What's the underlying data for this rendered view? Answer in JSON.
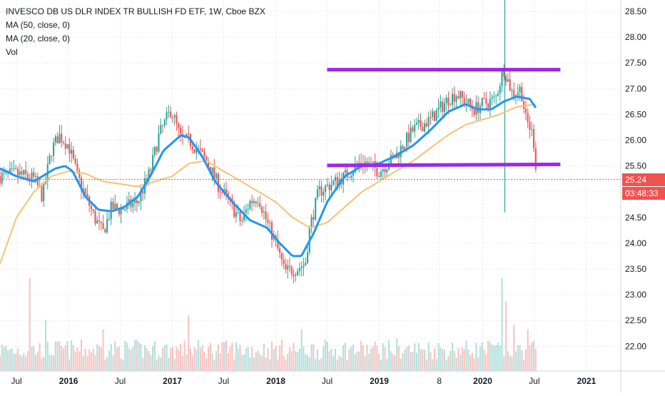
{
  "header": {
    "title": "INVESCO DB US DLR INDEX TR BULLISH FD ETF, 1W, Cboe BZX",
    "indicators": [
      "MA (50, close, 0)",
      "MA (20, close, 0)",
      "Vol"
    ]
  },
  "price_scale": {
    "labels": [
      "28.50",
      "28.00",
      "27.50",
      "27.00",
      "26.50",
      "26.00",
      "25.50",
      "25.00",
      "24.50",
      "24.00",
      "23.50",
      "23.00",
      "22.50",
      "22.00"
    ],
    "last_price": "25.24",
    "countdown": "03:48:33"
  },
  "time_scale": {
    "labels": [
      "Jul",
      "2016",
      "Jul",
      "2017",
      "Jul",
      "2018",
      "Jul",
      "2019",
      "8",
      "2020",
      "Jul",
      "2021"
    ]
  },
  "colors": {
    "up": "#26a69a",
    "down": "#ef5350",
    "ma20": "#2196f3",
    "ma50": "#f5c371",
    "lines": "#9c27ef",
    "last_price": "#ef5350",
    "grid": "#e3e6ec"
  },
  "chart_data": {
    "type": "candlestick",
    "title": "INVESCO DB US DLR INDEX TR BULLISH FD ETF, 1W, Cboe BZX",
    "interval": "1W",
    "x_range": [
      "2015-05",
      "2021-04"
    ],
    "y_range": [
      21.6,
      28.75
    ],
    "grid": true,
    "price_anchors": [
      [
        "2015-05-04",
        25.3
      ],
      [
        "2015-07-01",
        25.35
      ],
      [
        "2015-09-01",
        25.25
      ],
      [
        "2015-10-01",
        24.9
      ],
      [
        "2015-11-01",
        25.8
      ],
      [
        "2015-11-28",
        26.1
      ],
      [
        "2016-01-01",
        25.9
      ],
      [
        "2016-02-01",
        25.3
      ],
      [
        "2016-04-01",
        24.5
      ],
      [
        "2016-05-01",
        24.2
      ],
      [
        "2016-06-01",
        24.7
      ],
      [
        "2016-07-01",
        24.65
      ],
      [
        "2016-09-01",
        24.8
      ],
      [
        "2016-10-15",
        25.4
      ],
      [
        "2016-11-15",
        26.1
      ],
      [
        "2016-12-28",
        26.6
      ],
      [
        "2017-02-01",
        26.0
      ],
      [
        "2017-03-01",
        26.0
      ],
      [
        "2017-04-01",
        25.8
      ],
      [
        "2017-05-01",
        25.6
      ],
      [
        "2017-06-15",
        25.1
      ],
      [
        "2017-08-01",
        24.7
      ],
      [
        "2017-09-01",
        24.4
      ],
      [
        "2017-10-01",
        24.8
      ],
      [
        "2017-11-01",
        24.9
      ],
      [
        "2017-12-01",
        24.4
      ],
      [
        "2018-01-01",
        24.0
      ],
      [
        "2018-02-01",
        23.45
      ],
      [
        "2018-03-15",
        23.5
      ],
      [
        "2018-04-15",
        23.6
      ],
      [
        "2018-05-01",
        24.3
      ],
      [
        "2018-06-01",
        25.0
      ],
      [
        "2018-07-01",
        25.1
      ],
      [
        "2018-09-01",
        25.3
      ],
      [
        "2018-11-01",
        25.6
      ],
      [
        "2019-01-01",
        25.4
      ],
      [
        "2019-03-01",
        25.7
      ],
      [
        "2019-05-01",
        26.2
      ],
      [
        "2019-07-01",
        26.4
      ],
      [
        "2019-09-01",
        26.8
      ],
      [
        "2019-10-01",
        26.9
      ],
      [
        "2019-12-01",
        26.6
      ],
      [
        "2020-01-01",
        26.7
      ],
      [
        "2020-02-15",
        26.8
      ],
      [
        "2020-03-15",
        27.4
      ],
      [
        "2020-04-15",
        26.9
      ],
      [
        "2020-05-15",
        27.0
      ],
      [
        "2020-06-01",
        26.4
      ],
      [
        "2020-06-20",
        26.2
      ],
      [
        "2020-07-01",
        25.9
      ],
      [
        "2020-07-10",
        25.24
      ]
    ],
    "ma20_anchors": [
      [
        "2015-05-04",
        25.45
      ],
      [
        "2015-07-01",
        25.3
      ],
      [
        "2015-09-01",
        25.2
      ],
      [
        "2015-10-15",
        25.35
      ],
      [
        "2015-11-15",
        25.45
      ],
      [
        "2015-12-20",
        25.5
      ],
      [
        "2016-01-15",
        25.4
      ],
      [
        "2016-03-01",
        24.9
      ],
      [
        "2016-04-15",
        24.65
      ],
      [
        "2016-06-01",
        24.62
      ],
      [
        "2016-07-15",
        24.7
      ],
      [
        "2016-09-01",
        24.9
      ],
      [
        "2016-10-15",
        25.3
      ],
      [
        "2016-12-01",
        25.8
      ],
      [
        "2017-02-01",
        26.1
      ],
      [
        "2017-03-01",
        26.05
      ],
      [
        "2017-04-15",
        25.7
      ],
      [
        "2017-06-01",
        25.2
      ],
      [
        "2017-08-01",
        24.8
      ],
      [
        "2017-10-01",
        24.45
      ],
      [
        "2017-12-01",
        24.3
      ],
      [
        "2018-01-15",
        24.0
      ],
      [
        "2018-03-01",
        23.75
      ],
      [
        "2018-04-01",
        23.75
      ],
      [
        "2018-05-15",
        24.2
      ],
      [
        "2018-07-01",
        24.8
      ],
      [
        "2018-09-01",
        25.3
      ],
      [
        "2018-11-01",
        25.5
      ],
      [
        "2019-01-01",
        25.55
      ],
      [
        "2019-03-01",
        25.7
      ],
      [
        "2019-05-01",
        25.9
      ],
      [
        "2019-07-01",
        26.2
      ],
      [
        "2019-09-01",
        26.55
      ],
      [
        "2019-11-01",
        26.7
      ],
      [
        "2019-12-15",
        26.6
      ],
      [
        "2020-02-01",
        26.6
      ],
      [
        "2020-03-15",
        26.75
      ],
      [
        "2020-05-01",
        26.85
      ],
      [
        "2020-06-15",
        26.8
      ],
      [
        "2020-07-10",
        26.6
      ]
    ],
    "ma50_anchors": [
      [
        "2015-05-04",
        23.6
      ],
      [
        "2015-07-01",
        24.5
      ],
      [
        "2015-09-01",
        25.0
      ],
      [
        "2015-11-01",
        25.3
      ],
      [
        "2016-01-01",
        25.4
      ],
      [
        "2016-03-01",
        25.35
      ],
      [
        "2016-05-01",
        25.2
      ],
      [
        "2016-07-01",
        25.15
      ],
      [
        "2016-09-01",
        25.1
      ],
      [
        "2016-11-01",
        25.2
      ],
      [
        "2017-01-01",
        25.3
      ],
      [
        "2017-03-01",
        25.55
      ],
      [
        "2017-05-01",
        25.6
      ],
      [
        "2017-07-01",
        25.4
      ],
      [
        "2017-09-01",
        25.2
      ],
      [
        "2017-11-01",
        25.0
      ],
      [
        "2018-01-01",
        24.8
      ],
      [
        "2018-03-01",
        24.5
      ],
      [
        "2018-05-01",
        24.3
      ],
      [
        "2018-07-01",
        24.4
      ],
      [
        "2018-09-01",
        24.7
      ],
      [
        "2018-11-01",
        25.0
      ],
      [
        "2019-01-01",
        25.2
      ],
      [
        "2019-03-01",
        25.4
      ],
      [
        "2019-05-01",
        25.6
      ],
      [
        "2019-07-01",
        25.85
      ],
      [
        "2019-09-01",
        26.1
      ],
      [
        "2019-11-01",
        26.3
      ],
      [
        "2020-01-01",
        26.4
      ],
      [
        "2020-03-01",
        26.5
      ],
      [
        "2020-05-01",
        26.65
      ],
      [
        "2020-07-10",
        26.7
      ]
    ],
    "resistance_line": {
      "from": [
        "2018-07-01",
        27.37
      ],
      "to": [
        "2020-10-01",
        27.37
      ]
    },
    "support_line": {
      "from": [
        "2018-07-01",
        25.51
      ],
      "to": [
        "2020-10-01",
        25.53
      ]
    },
    "volume_spikes": [
      [
        "2015-08-20",
        1.0
      ],
      [
        "2015-10-10",
        0.55
      ],
      [
        "2016-05-01",
        0.45
      ],
      [
        "2017-03-01",
        0.6
      ],
      [
        "2018-04-01",
        0.45
      ],
      [
        "2019-03-01",
        0.35
      ],
      [
        "2020-03-10",
        1.0
      ],
      [
        "2020-03-25",
        0.75
      ],
      [
        "2020-04-20",
        0.5
      ],
      [
        "2020-06-10",
        0.45
      ]
    ],
    "spike": {
      "date": "2020-03-19",
      "high": 28.75,
      "low": 24.6
    }
  }
}
